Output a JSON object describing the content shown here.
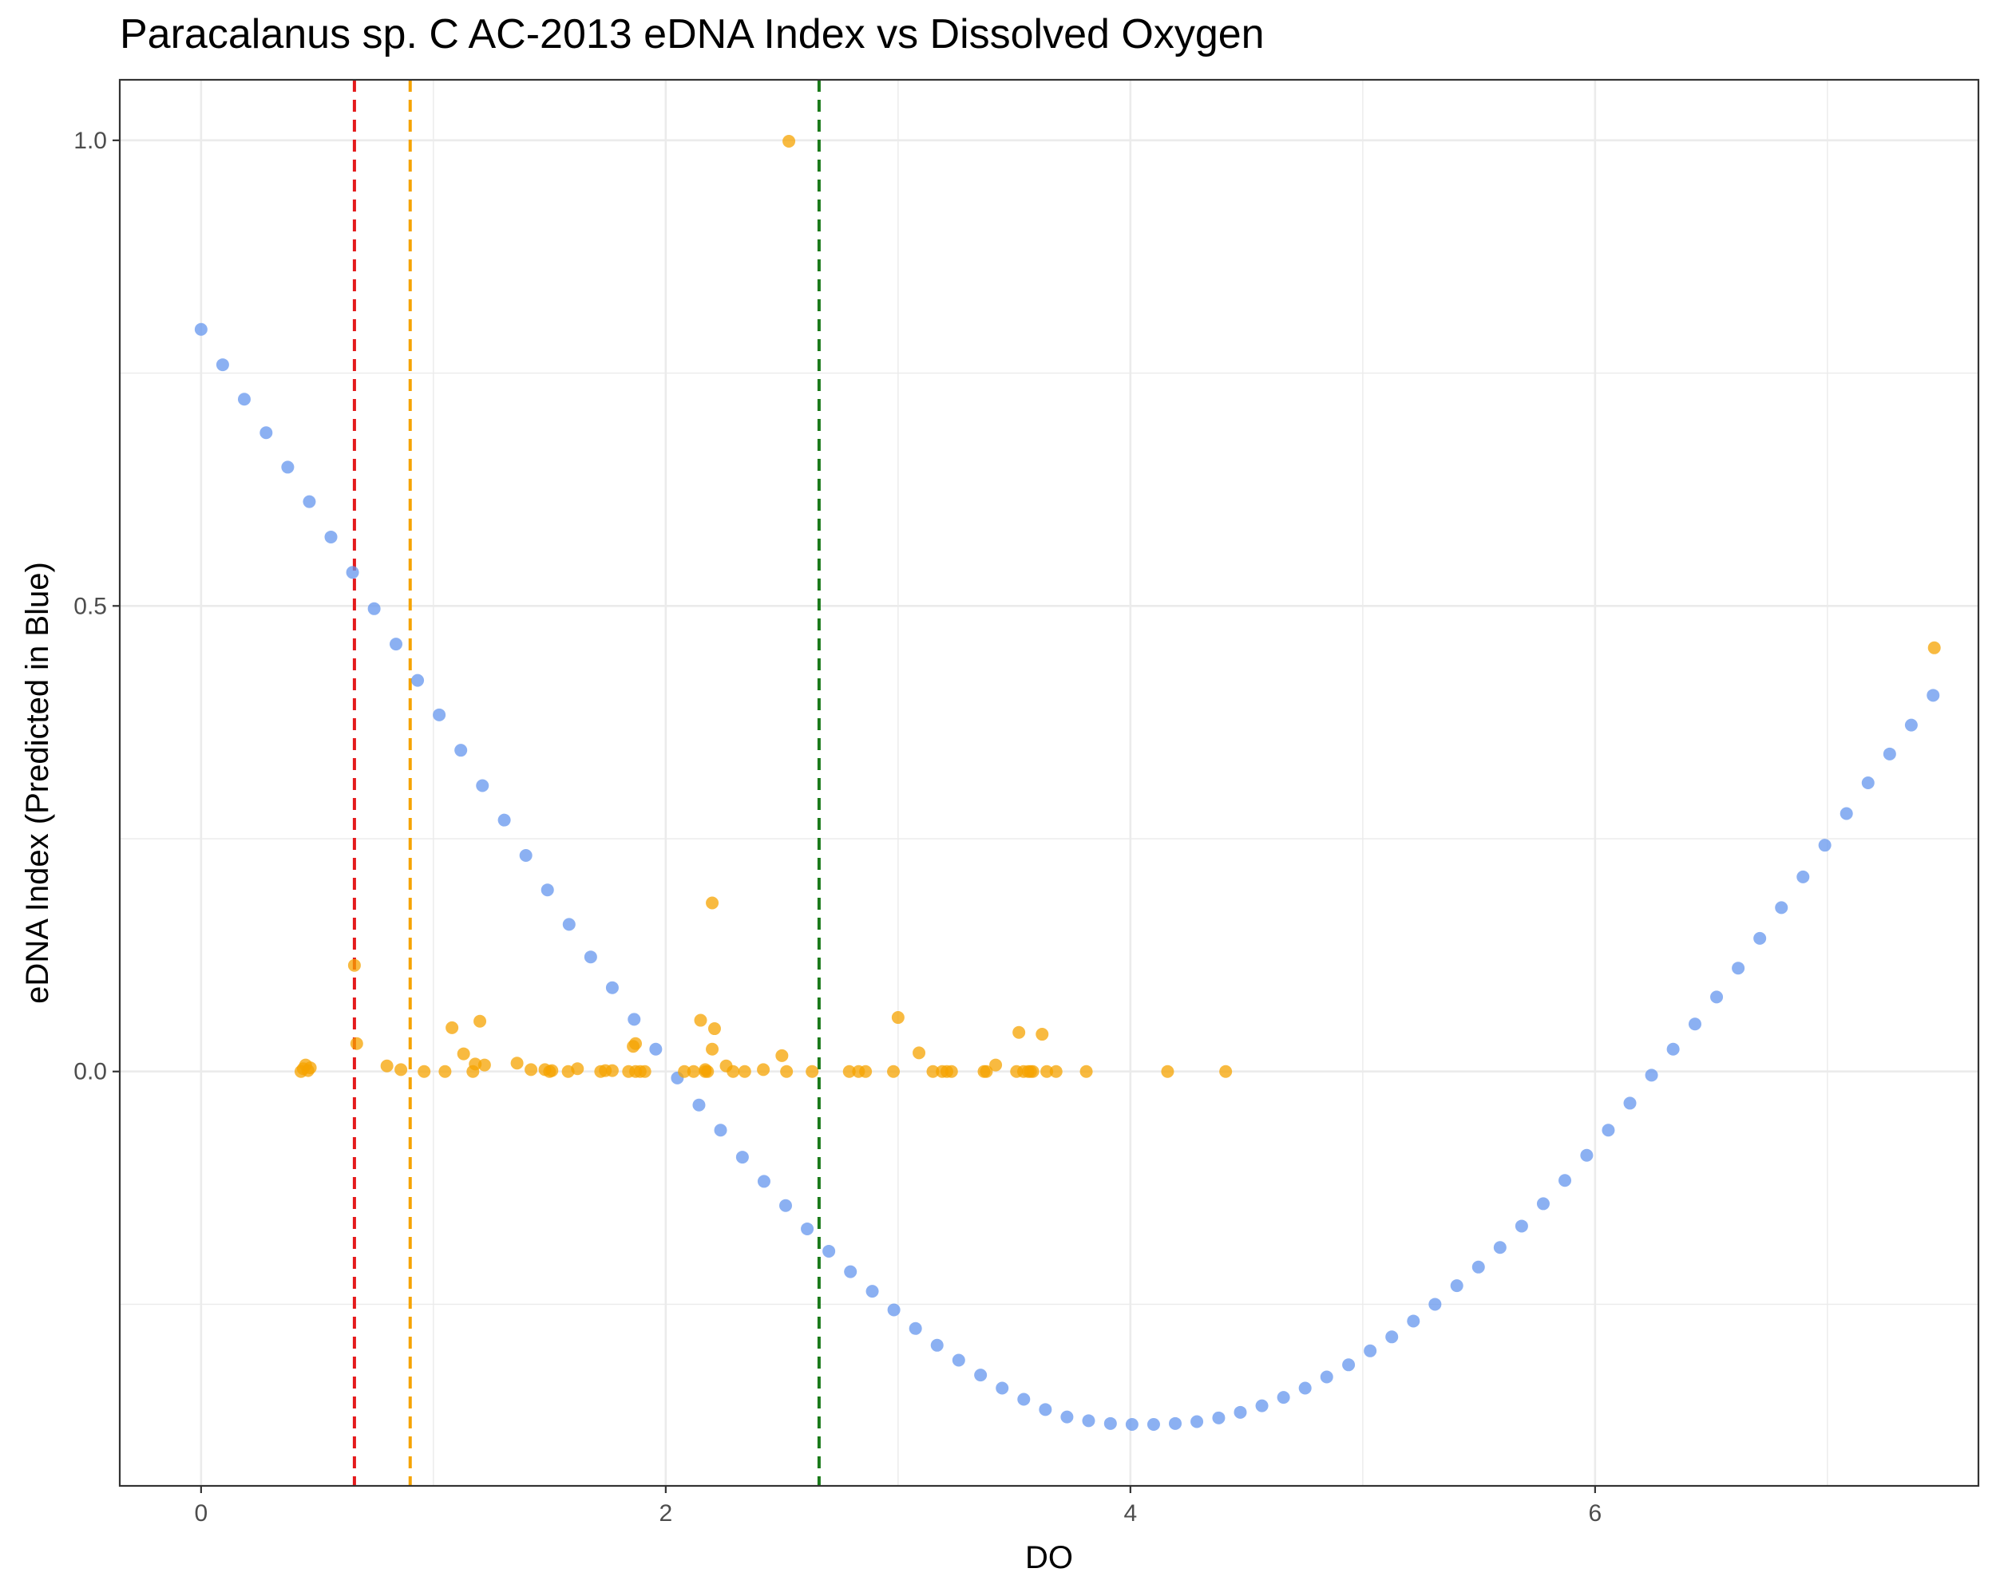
{
  "chart_data": {
    "type": "scatter",
    "title": "Paracalanus sp. C AC-2013 eDNA Index vs Dissolved Oxygen",
    "xlabel": "DO",
    "ylabel": "eDNA Index (Predicted in Blue)",
    "xlim": [
      -0.35,
      7.65
    ],
    "ylim": [
      -0.445,
      1.065
    ],
    "x_ticks": [
      0,
      2,
      4,
      6
    ],
    "x_tick_labels": [
      "0",
      "2",
      "4",
      "6"
    ],
    "y_ticks": [
      0,
      0.5,
      1
    ],
    "y_tick_labels": [
      "0.0",
      "0.5",
      "1.0"
    ],
    "grid": true,
    "vlines": [
      {
        "x": 0.66,
        "color": "#e41a1c"
      },
      {
        "x": 0.9,
        "color": "#f5a300"
      },
      {
        "x": 2.66,
        "color": "#1a7a1a"
      }
    ],
    "series": [
      {
        "color": "#6495ed",
        "points": [
          [
            0.0,
            0.797
          ],
          [
            0.093,
            0.759
          ],
          [
            0.186,
            0.722
          ],
          [
            0.28,
            0.686
          ],
          [
            0.373,
            0.649
          ],
          [
            0.466,
            0.612
          ],
          [
            0.559,
            0.574
          ],
          [
            0.652,
            0.536
          ],
          [
            0.745,
            0.497
          ],
          [
            0.839,
            0.459
          ],
          [
            0.932,
            0.42
          ],
          [
            1.025,
            0.383
          ],
          [
            1.118,
            0.345
          ],
          [
            1.211,
            0.307
          ],
          [
            1.305,
            0.27
          ],
          [
            1.398,
            0.232
          ],
          [
            1.491,
            0.195
          ],
          [
            1.584,
            0.158
          ],
          [
            1.677,
            0.123
          ],
          [
            1.77,
            0.09
          ],
          [
            1.864,
            0.056
          ],
          [
            1.957,
            0.024
          ],
          [
            2.05,
            -0.007
          ],
          [
            2.143,
            -0.036
          ],
          [
            2.236,
            -0.063
          ],
          [
            2.33,
            -0.092
          ],
          [
            2.423,
            -0.118
          ],
          [
            2.516,
            -0.144
          ],
          [
            2.609,
            -0.169
          ],
          [
            2.702,
            -0.193
          ],
          [
            2.795,
            -0.215
          ],
          [
            2.889,
            -0.236
          ],
          [
            2.982,
            -0.256
          ],
          [
            3.075,
            -0.276
          ],
          [
            3.168,
            -0.294
          ],
          [
            3.261,
            -0.31
          ],
          [
            3.355,
            -0.326
          ],
          [
            3.448,
            -0.34
          ],
          [
            3.541,
            -0.352
          ],
          [
            3.634,
            -0.363
          ],
          [
            3.727,
            -0.371
          ],
          [
            3.82,
            -0.375
          ],
          [
            3.914,
            -0.378
          ],
          [
            4.007,
            -0.379
          ],
          [
            4.1,
            -0.379
          ],
          [
            4.193,
            -0.378
          ],
          [
            4.286,
            -0.376
          ],
          [
            4.38,
            -0.372
          ],
          [
            4.473,
            -0.366
          ],
          [
            4.566,
            -0.359
          ],
          [
            4.659,
            -0.35
          ],
          [
            4.752,
            -0.34
          ],
          [
            4.845,
            -0.328
          ],
          [
            4.939,
            -0.315
          ],
          [
            5.032,
            -0.3
          ],
          [
            5.125,
            -0.285
          ],
          [
            5.218,
            -0.268
          ],
          [
            5.311,
            -0.25
          ],
          [
            5.405,
            -0.23
          ],
          [
            5.498,
            -0.21
          ],
          [
            5.591,
            -0.189
          ],
          [
            5.684,
            -0.166
          ],
          [
            5.777,
            -0.142
          ],
          [
            5.87,
            -0.117
          ],
          [
            5.964,
            -0.09
          ],
          [
            6.057,
            -0.063
          ],
          [
            6.15,
            -0.034
          ],
          [
            6.243,
            -0.004
          ],
          [
            6.336,
            0.024
          ],
          [
            6.43,
            0.051
          ],
          [
            6.523,
            0.08
          ],
          [
            6.616,
            0.111
          ],
          [
            6.709,
            0.143
          ],
          [
            6.802,
            0.176
          ],
          [
            6.895,
            0.209
          ],
          [
            6.989,
            0.243
          ],
          [
            7.082,
            0.277
          ],
          [
            7.175,
            0.31
          ],
          [
            7.268,
            0.341
          ],
          [
            7.361,
            0.372
          ],
          [
            7.455,
            0.404
          ]
        ]
      },
      {
        "color": "#f5a300",
        "points": [
          [
            0.43,
            0.0
          ],
          [
            0.44,
            0.003
          ],
          [
            0.45,
            0.007
          ],
          [
            0.46,
            0.001
          ],
          [
            0.47,
            0.004
          ],
          [
            0.66,
            0.114
          ],
          [
            0.67,
            0.03
          ],
          [
            0.8,
            0.006
          ],
          [
            0.86,
            0.002
          ],
          [
            0.96,
            0.0
          ],
          [
            1.05,
            0.0
          ],
          [
            1.08,
            0.047
          ],
          [
            1.13,
            0.019
          ],
          [
            1.17,
            0.0
          ],
          [
            1.18,
            0.008
          ],
          [
            1.2,
            0.054
          ],
          [
            1.22,
            0.007
          ],
          [
            1.36,
            0.009
          ],
          [
            1.42,
            0.002
          ],
          [
            1.48,
            0.002
          ],
          [
            1.5,
            0.0
          ],
          [
            1.51,
            0.001
          ],
          [
            1.58,
            0.0
          ],
          [
            1.62,
            0.003
          ],
          [
            1.72,
            0.0
          ],
          [
            1.74,
            0.001
          ],
          [
            1.77,
            0.001
          ],
          [
            1.84,
            0.0
          ],
          [
            1.86,
            0.027
          ],
          [
            1.87,
            0.0
          ],
          [
            1.87,
            0.03
          ],
          [
            1.89,
            0.0
          ],
          [
            1.91,
            0.0
          ],
          [
            2.08,
            0.0
          ],
          [
            2.12,
            0.0
          ],
          [
            2.15,
            0.055
          ],
          [
            2.17,
            0.0
          ],
          [
            2.17,
            0.002
          ],
          [
            2.18,
            0.0
          ],
          [
            2.2,
            0.181
          ],
          [
            2.2,
            0.024
          ],
          [
            2.21,
            0.046
          ],
          [
            2.26,
            0.006
          ],
          [
            2.29,
            0.0
          ],
          [
            2.34,
            0.0
          ],
          [
            2.42,
            0.002
          ],
          [
            2.5,
            0.017
          ],
          [
            2.52,
            0.0
          ],
          [
            2.53,
            0.999
          ],
          [
            2.63,
            0.0
          ],
          [
            2.79,
            0.0
          ],
          [
            2.83,
            0.0
          ],
          [
            2.86,
            0.0
          ],
          [
            2.98,
            0.0
          ],
          [
            3.0,
            0.058
          ],
          [
            3.09,
            0.02
          ],
          [
            3.15,
            0.0
          ],
          [
            3.19,
            0.0
          ],
          [
            3.21,
            0.0
          ],
          [
            3.23,
            0.0
          ],
          [
            3.37,
            0.0
          ],
          [
            3.38,
            0.0
          ],
          [
            3.42,
            0.007
          ],
          [
            3.51,
            0.0
          ],
          [
            3.52,
            0.042
          ],
          [
            3.54,
            0.0
          ],
          [
            3.56,
            0.0
          ],
          [
            3.57,
            0.0
          ],
          [
            3.58,
            0.0
          ],
          [
            3.62,
            0.04
          ],
          [
            3.64,
            0.0
          ],
          [
            3.68,
            0.0
          ],
          [
            3.81,
            0.0
          ],
          [
            4.16,
            0.0
          ],
          [
            4.41,
            0.0
          ],
          [
            7.46,
            0.455
          ]
        ]
      }
    ]
  }
}
